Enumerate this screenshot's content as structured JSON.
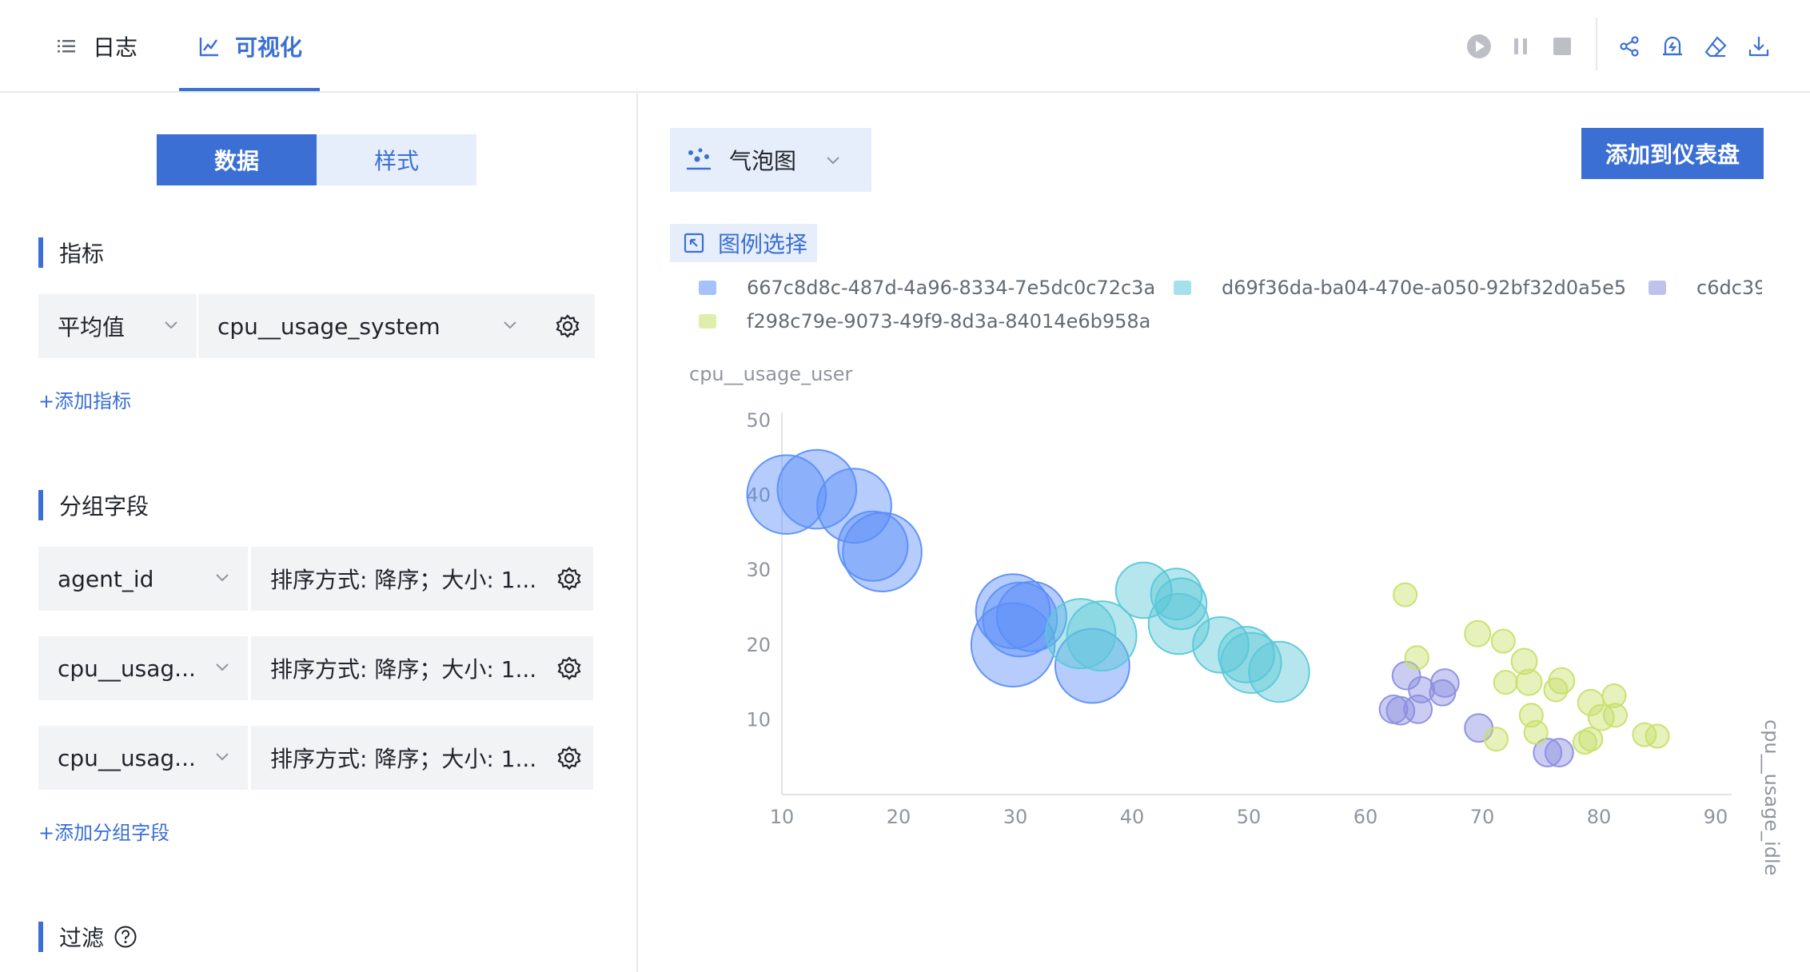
{
  "tabs": [
    {
      "label": "日志",
      "icon": "list-icon"
    },
    {
      "label": "可视化",
      "icon": "line-chart-icon"
    }
  ],
  "toolbar": {
    "icons": [
      "play-icon",
      "pause-icon",
      "stop-icon",
      "share-icon",
      "alert-icon",
      "eraser-icon",
      "download-icon"
    ]
  },
  "left_panel": {
    "segments": {
      "data": "数据",
      "style": "样式"
    },
    "metrics": {
      "title": "指标",
      "aggregation": "平均值",
      "field": "cpu__usage_system",
      "add_link": "+添加指标"
    },
    "group_by": {
      "title": "分组字段",
      "rows": [
        {
          "field": "agent_id",
          "sort": "排序方式: 降序；大小: 1..."
        },
        {
          "field": "cpu__usag...",
          "sort": "排序方式: 降序；大小: 1..."
        },
        {
          "field": "cpu__usag...",
          "sort": "排序方式: 降序；大小: 1..."
        }
      ],
      "add_link": "+添加分组字段"
    },
    "filter": {
      "title": "过滤"
    }
  },
  "chart_panel": {
    "chart_type": "气泡图",
    "add_to_dashboard": "添加到仪表盘",
    "legend_select": "图例选择"
  },
  "colors": {
    "accent": "#3b6fd4",
    "series": [
      "#5b8ff9",
      "#5ac8d8",
      "#8c8fe0",
      "#c7e06a"
    ]
  },
  "chart_data": {
    "type": "scatter",
    "subtype": "bubble",
    "ylabel": "cpu__usage_user",
    "size_label": "cpu__usage_idle",
    "xlim": [
      10,
      90
    ],
    "ylim": [
      0,
      50
    ],
    "x_ticks": [
      10,
      20,
      30,
      40,
      50,
      60,
      70,
      80,
      90
    ],
    "y_ticks": [
      10,
      20,
      30,
      40,
      50
    ],
    "grid": false,
    "legend_position": "top",
    "series": [
      {
        "name": "667c8d8c-487d-4a96-8334-7e5dc0c72c3a",
        "color": "#5b8ff9",
        "points": [
          [
            10.4,
            40.1,
            34
          ],
          [
            13,
            40.8,
            34
          ],
          [
            16.2,
            38.6,
            32
          ],
          [
            17.8,
            33.2,
            30
          ],
          [
            18.6,
            32.4,
            34
          ],
          [
            29.8,
            24.5,
            32
          ],
          [
            30.4,
            23.4,
            32
          ],
          [
            31.4,
            23.8,
            30
          ],
          [
            29.8,
            20,
            36
          ],
          [
            36.6,
            17.2,
            32
          ]
        ]
      },
      {
        "name": "d69f36da-ba04-470e-a050-92bf32d0a5e5",
        "color": "#5ac8d8",
        "points": [
          [
            35.6,
            21.5,
            30
          ],
          [
            37.4,
            21.2,
            30
          ],
          [
            41,
            27.3,
            24
          ],
          [
            43.8,
            26.8,
            22
          ],
          [
            44.2,
            25.5,
            22
          ],
          [
            44,
            22.8,
            26
          ],
          [
            47.6,
            20,
            24
          ],
          [
            49.8,
            18.7,
            24
          ],
          [
            50.2,
            17.6,
            26
          ],
          [
            52.6,
            16.4,
            26
          ]
        ]
      },
      {
        "name": "c6dc39",
        "color": "#8c8fe0",
        "points": [
          [
            62.4,
            11.4,
            12
          ],
          [
            63,
            11.2,
            12
          ],
          [
            63.5,
            15.9,
            12
          ],
          [
            64.5,
            11.4,
            12
          ],
          [
            64.8,
            14,
            11
          ],
          [
            66.8,
            14.9,
            12
          ],
          [
            66.6,
            13.6,
            11
          ],
          [
            69.7,
            8.9,
            12
          ],
          [
            75.6,
            5.6,
            12
          ],
          [
            76.6,
            5.6,
            12
          ]
        ]
      },
      {
        "name": "f298c79e-9073-49f9-8d3a-84014e6b958a",
        "color": "#c7e06a",
        "points": [
          [
            63.4,
            26.7,
            10
          ],
          [
            64.4,
            18.3,
            10
          ],
          [
            69.6,
            21.5,
            11
          ],
          [
            71.8,
            20.5,
            10
          ],
          [
            72,
            15,
            10
          ],
          [
            73.6,
            17.8,
            11
          ],
          [
            74,
            15,
            11
          ],
          [
            74.2,
            10.6,
            10
          ],
          [
            71.2,
            7.4,
            10
          ],
          [
            74.6,
            8.3,
            10
          ],
          [
            76.3,
            14,
            10
          ],
          [
            76.8,
            15.2,
            11
          ],
          [
            79.3,
            12.3,
            11
          ],
          [
            80.2,
            10.3,
            11
          ],
          [
            81.3,
            13.2,
            10
          ],
          [
            81.4,
            10.6,
            10
          ],
          [
            79.3,
            7.4,
            10
          ],
          [
            78.8,
            7,
            10
          ],
          [
            83.9,
            8,
            10
          ],
          [
            85,
            7.8,
            10
          ]
        ]
      }
    ]
  }
}
